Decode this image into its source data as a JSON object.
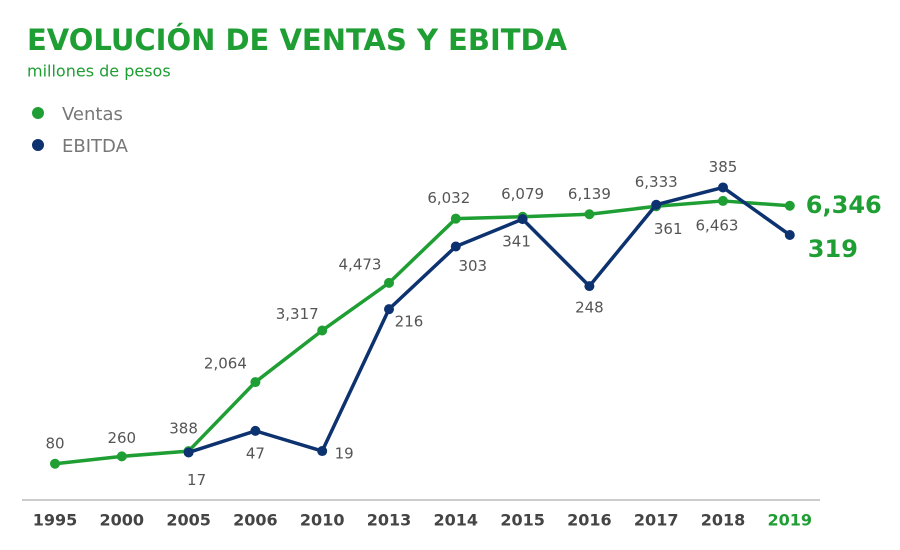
{
  "chart_data": {
    "type": "line",
    "title": "EVOLUCIÓN DE VENTAS Y EBITDA",
    "subtitle": "millones de pesos",
    "categories": [
      "1995",
      "2000",
      "2005",
      "2006",
      "2010",
      "2013",
      "2014",
      "2015",
      "2016",
      "2017",
      "2018",
      "2019"
    ],
    "ylim": [
      -800,
      7700
    ],
    "y2lim": [
      -49,
      437
    ],
    "legend": "top-left",
    "series": [
      {
        "name": "Ventas",
        "color": "#1f9e34",
        "values": [
          80,
          260,
          388,
          2064,
          3317,
          4473,
          6032,
          6079,
          6139,
          6333,
          6463,
          6346
        ],
        "value_labels": [
          "80",
          "260",
          "388",
          "2,064",
          "3,317",
          "4,473",
          "6,032",
          "6,079",
          "6,139",
          "6,333",
          "6,463",
          "6,346"
        ]
      },
      {
        "name": "EBITDA",
        "color": "#0d3270",
        "axis": "y2",
        "values": [
          null,
          null,
          17,
          47,
          19,
          216,
          303,
          341,
          248,
          361,
          385,
          319
        ]
      }
    ]
  }
}
